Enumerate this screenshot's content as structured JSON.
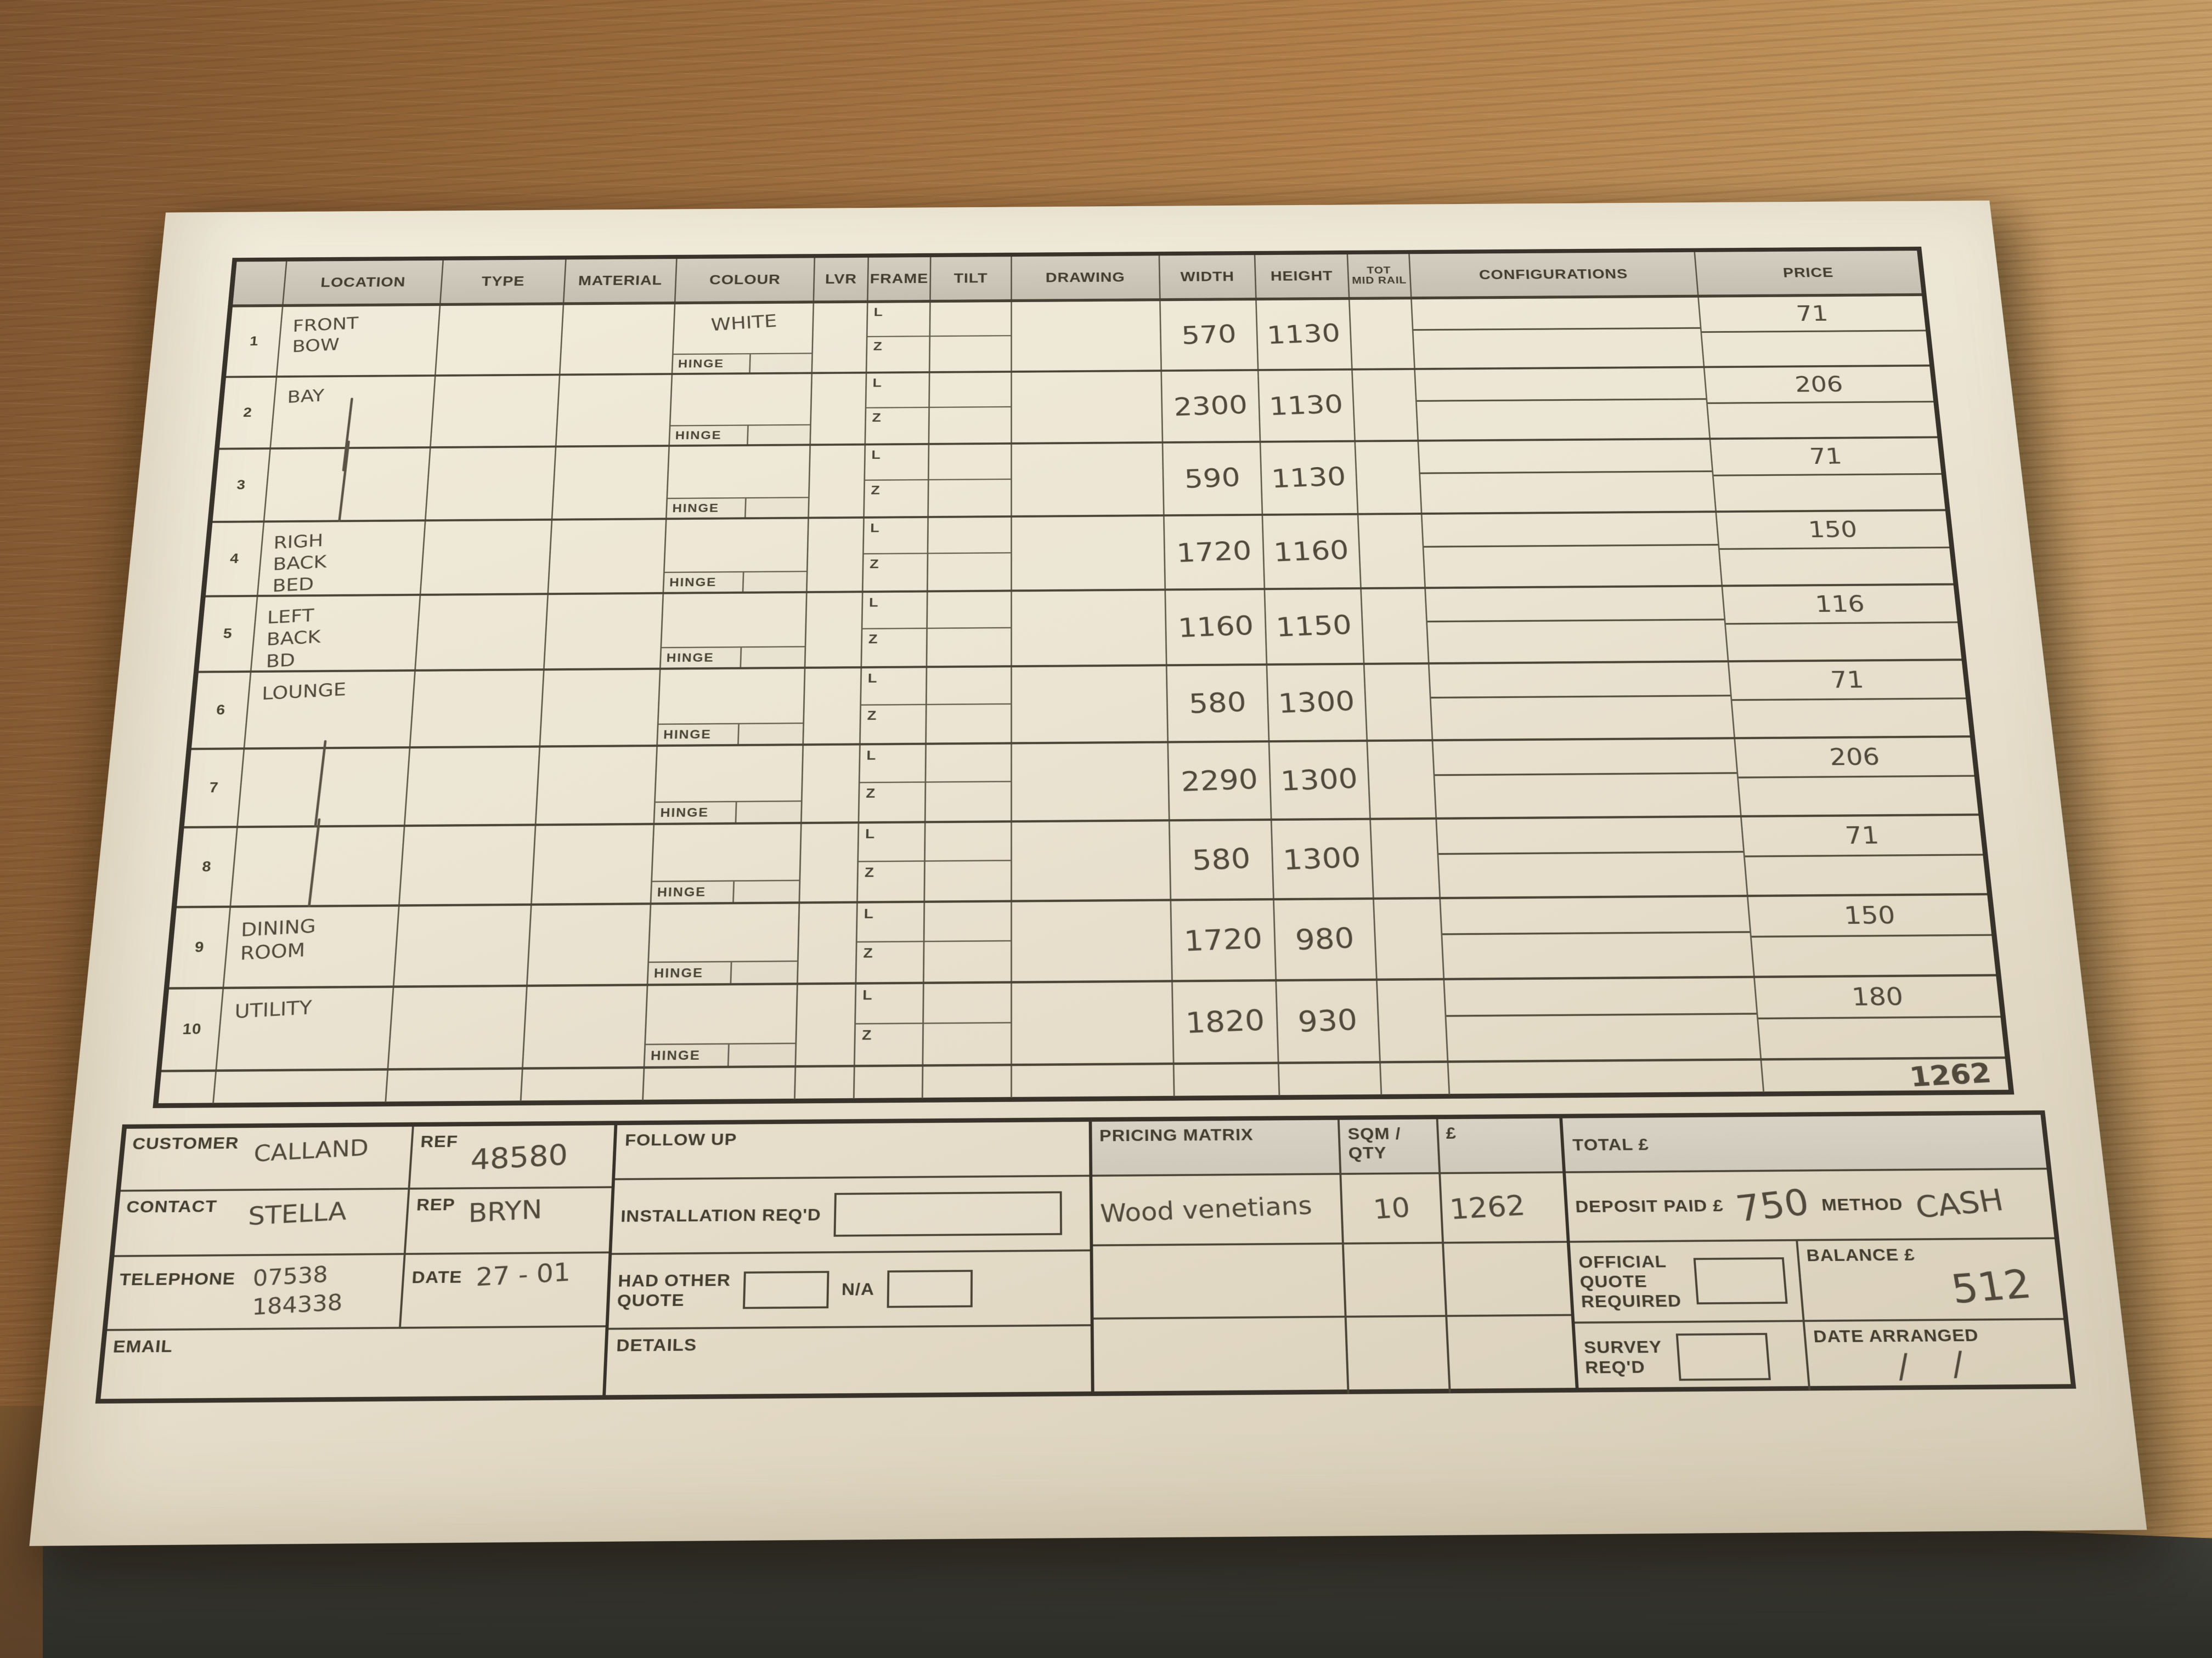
{
  "form": {
    "table": {
      "columns": [
        "LOCATION",
        "TYPE",
        "MATERIAL",
        "COLOUR",
        "LVR",
        "FRAME",
        "TILT",
        "DRAWING",
        "WIDTH",
        "HEIGHT",
        "TOT\nMID RAIL",
        "CONFIGURATIONS",
        "PRICE"
      ],
      "frame_option_top": "L",
      "frame_option_bottom": "Z",
      "hinge_label": "HINGE",
      "rows": [
        {
          "num": "1",
          "location": "FRONT\nBOW",
          "colour": "WHITE",
          "width": "570",
          "height": "1130",
          "price": "71",
          "ditto": false
        },
        {
          "num": "2",
          "location": "BAY",
          "colour": "",
          "width": "2300",
          "height": "1130",
          "price": "206",
          "ditto": true
        },
        {
          "num": "3",
          "location": "",
          "colour": "",
          "width": "590",
          "height": "1130",
          "price": "71",
          "ditto": true
        },
        {
          "num": "4",
          "location": "RIGH\nBACK\nBED",
          "colour": "",
          "width": "1720",
          "height": "1160",
          "price": "150",
          "ditto": false
        },
        {
          "num": "5",
          "location": "LEFT\nBACK\nBD",
          "colour": "",
          "width": "1160",
          "height": "1150",
          "price": "116",
          "ditto": false
        },
        {
          "num": "6",
          "location": "LOUNGE",
          "colour": "",
          "width": "580",
          "height": "1300",
          "price": "71",
          "ditto": false
        },
        {
          "num": "7",
          "location": "",
          "colour": "",
          "width": "2290",
          "height": "1300",
          "price": "206",
          "ditto": true
        },
        {
          "num": "8",
          "location": "",
          "colour": "",
          "width": "580",
          "height": "1300",
          "price": "71",
          "ditto": true
        },
        {
          "num": "9",
          "location": "DINING\nROOM",
          "colour": "",
          "width": "1720",
          "height": "980",
          "price": "150",
          "ditto": false
        },
        {
          "num": "10",
          "location": "UTILITY",
          "colour": "",
          "width": "1820",
          "height": "930",
          "price": "180",
          "ditto": false
        }
      ],
      "total_price": "1262"
    },
    "customer_block": {
      "customer_label": "CUSTOMER",
      "customer_value": "CALLAND",
      "ref_label": "REF",
      "ref_value": "48580",
      "contact_label": "CONTACT",
      "contact_value": "STELLA",
      "rep_label": "REP",
      "rep_value": "BRYN",
      "telephone_label": "TELEPHONE",
      "telephone_value": "07538\n184338",
      "date_label": "DATE",
      "date_value": "27 - 01",
      "email_label": "EMAIL",
      "email_value": ""
    },
    "followup_block": {
      "follow_up_label": "FOLLOW UP",
      "installation_label": "INSTALLATION REQ'D",
      "had_other_quote_label": "HAD OTHER\nQUOTE",
      "na_label": "N/A",
      "details_label": "DETAILS"
    },
    "pricing_block": {
      "title": "PRICING MATRIX",
      "qty_label": "SQM / QTY",
      "currency_label": "£",
      "row_product": "Wood venetians",
      "row_qty": "10",
      "row_amount": "1262"
    },
    "total_block": {
      "total_label": "TOTAL £",
      "total_value": "",
      "deposit_label": "DEPOSIT PAID £",
      "deposit_value": "750",
      "method_label": "METHOD",
      "method_value": "CASH",
      "official_quote_label": "OFFICIAL\nQUOTE\nREQUIRED",
      "balance_label": "BALANCE £",
      "balance_value": "512",
      "survey_label": "SURVEY\nREQ'D",
      "date_arranged_label": "DATE ARRANGED",
      "date_arranged_value": "/      /"
    },
    "colors": {
      "paper": "#ece5d3",
      "wood_light": "#c59c66",
      "wood_dark": "#7d5530",
      "ink": "#51493b",
      "print": "#433d30",
      "grid": "#56503f",
      "header_fill": "#cdc7b9",
      "dark_surface": "#3d3e37"
    }
  }
}
